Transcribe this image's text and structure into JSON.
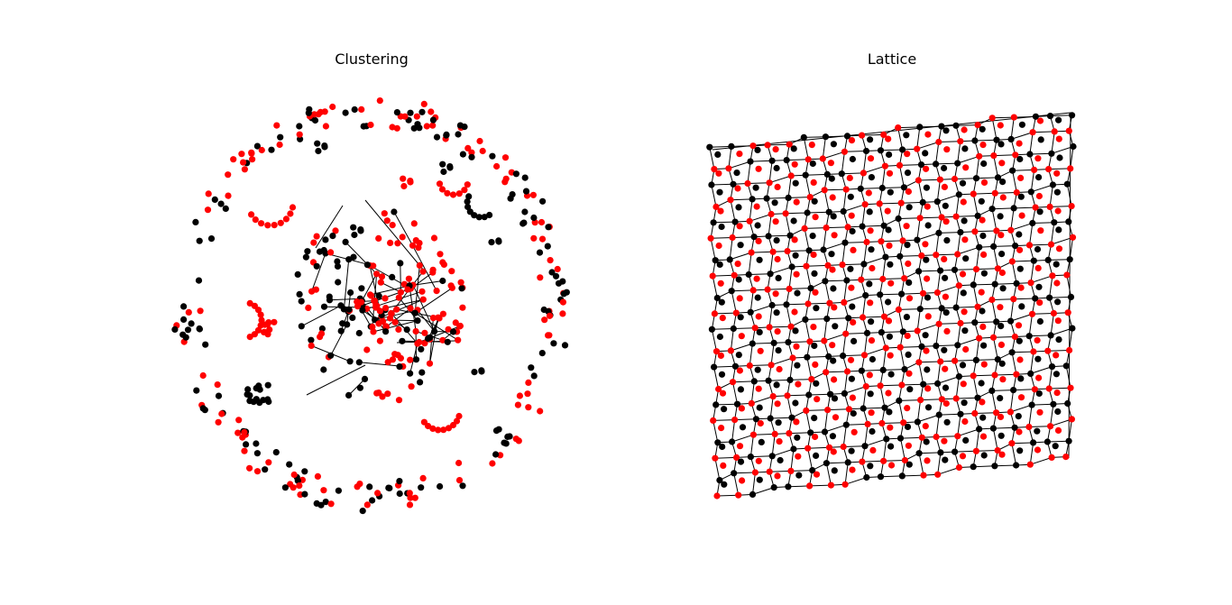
{
  "panels": [
    {
      "title": "Clustering",
      "layout": "clustered-circle"
    },
    {
      "title": "Lattice",
      "layout": "skewed-grid"
    }
  ],
  "colors": {
    "node_a": "#ff0000",
    "node_b": "#000000",
    "edge": "#000000",
    "background": "#ffffff"
  },
  "grid": false,
  "axes_visible": false,
  "lattice": {
    "columns": 20,
    "rows": 20,
    "node_colors": [
      "#ff0000",
      "#000000"
    ]
  }
}
